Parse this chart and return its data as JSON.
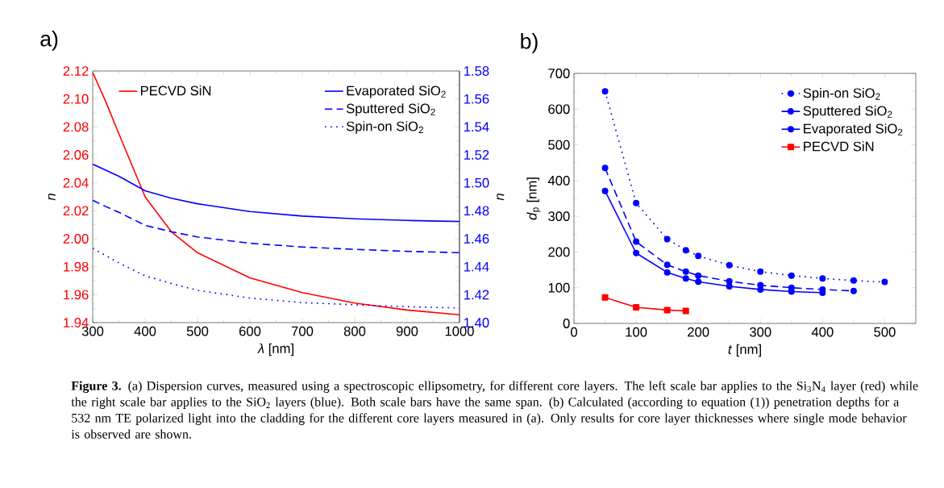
{
  "chart_data": [
    {
      "type": "line",
      "title": "a)",
      "xlabel": "*λ* [nm]",
      "ylabel": "*n*",
      "y2label": "*n*",
      "legend": "top",
      "x": [
        300,
        325,
        350,
        400,
        450,
        500,
        600,
        700,
        800,
        900,
        1000
      ],
      "xlim": [
        300,
        1000
      ],
      "xticks": [
        300,
        400,
        500,
        600,
        700,
        800,
        900,
        1000
      ],
      "ylim": [
        1.94,
        2.12
      ],
      "yticks": [
        1.94,
        1.96,
        1.98,
        {
          "value": 2.0,
          "label": "2.00"
        },
        2.02,
        2.04,
        2.06,
        2.08,
        {
          "value": 2.1,
          "label": "2.10"
        },
        2.12
      ],
      "y2lim": [
        1.4,
        1.58
      ],
      "y2ticks": [
        {
          "value": 1.4,
          "label": "1.40"
        },
        1.42,
        1.44,
        1.46,
        1.48,
        {
          "value": 1.5,
          "label": "1.50"
        },
        1.52,
        1.54,
        1.56,
        1.58
      ],
      "series": [
        {
          "name": "PECVD SiN",
          "color": "#ff0000",
          "line_style": "solid",
          "values": [
            2.119,
            2.098,
            2.075,
            2.03,
            2.005,
            1.99,
            1.972,
            1.9615,
            1.954,
            1.949,
            1.9456
          ]
        },
        {
          "name": "Evaporated SiO$_{2}$",
          "color": "#0000ff",
          "axis": "y2",
          "line_style": "solid",
          "values": [
            1.5133,
            1.509,
            1.5047,
            1.4943,
            1.489,
            1.485,
            1.4795,
            1.4762,
            1.4743,
            1.4731,
            1.4723
          ]
        },
        {
          "name": "Sputtered SiO$_{2}$",
          "color": "#0000ff",
          "axis": "y2",
          "line_style": "dashed",
          "values": [
            1.4875,
            1.483,
            1.4789,
            1.4696,
            1.465,
            1.4613,
            1.4568,
            1.4541,
            1.4524,
            1.451,
            1.45
          ]
        },
        {
          "name": "Spin-on SiO$_{2}$",
          "color": "#0000ff",
          "axis": "y2",
          "line_style": "dotted",
          "values": [
            1.4531,
            1.448,
            1.4427,
            1.4335,
            1.428,
            1.4231,
            1.4176,
            1.4143,
            1.4128,
            1.4114,
            1.4104
          ]
        }
      ],
      "annotations": [
        "**Figure 3.** (a) Dispersion curves, measured using a spectroscopic ellipsometry, for different core layers. The left scale bar applies to the Si$_{3}$N$_{4}$ layer (red) while the right scale bar applies to the SiO$_{2}$ layers (blue). Both scale bars have the same span. (b) Calculated (according to equation (1)) penetration depths for a 532 nm TE polarized light into the cladding for the different core layers measured in (a). Only results for core layer thicknesses where single mode behavior is observed are shown."
      ]
    },
    {
      "type": "line",
      "title": "b)",
      "xlabel": "*t* [nm]",
      "ylabel": "*d*$_{p}$ [nm]",
      "legend": "top right",
      "xlim": [
        0,
        550
      ],
      "xticks": [
        0,
        100,
        200,
        300,
        400,
        500
      ],
      "ylim": [
        0,
        700
      ],
      "yticks": [
        0,
        100,
        200,
        300,
        400,
        500,
        600,
        700
      ],
      "series": [
        {
          "name": "Spin-on SiO$_{2}$",
          "color": "#0000ff",
          "line_style": "dotted",
          "marker": "circle",
          "x": [
            50,
            100,
            150,
            180,
            200,
            250,
            300,
            350,
            400,
            450,
            500
          ],
          "values": [
            650,
            337,
            236,
            205,
            189,
            163,
            145,
            134,
            126,
            120,
            116
          ]
        },
        {
          "name": "Sputtered SiO$_{2}$",
          "color": "#0000ff",
          "line_style": "dashed",
          "marker": "circle",
          "x": [
            50,
            100,
            150,
            180,
            200,
            250,
            300,
            350,
            400,
            450
          ],
          "values": [
            435,
            229,
            164,
            145,
            134,
            118,
            107,
            100,
            95,
            91
          ]
        },
        {
          "name": "Evaporated SiO$_{2}$",
          "color": "#0000ff",
          "line_style": "solid",
          "marker": "circle",
          "x": [
            50,
            100,
            150,
            180,
            200,
            250,
            300,
            350,
            400
          ],
          "values": [
            371,
            197,
            143,
            126,
            117,
            104,
            95,
            89,
            86
          ]
        },
        {
          "name": "PECVD SiN",
          "color": "#ff0000",
          "line_style": "solid",
          "marker": "square",
          "x": [
            50,
            100,
            150,
            180
          ],
          "values": [
            73,
            45,
            37.5,
            35
          ]
        }
      ]
    }
  ]
}
